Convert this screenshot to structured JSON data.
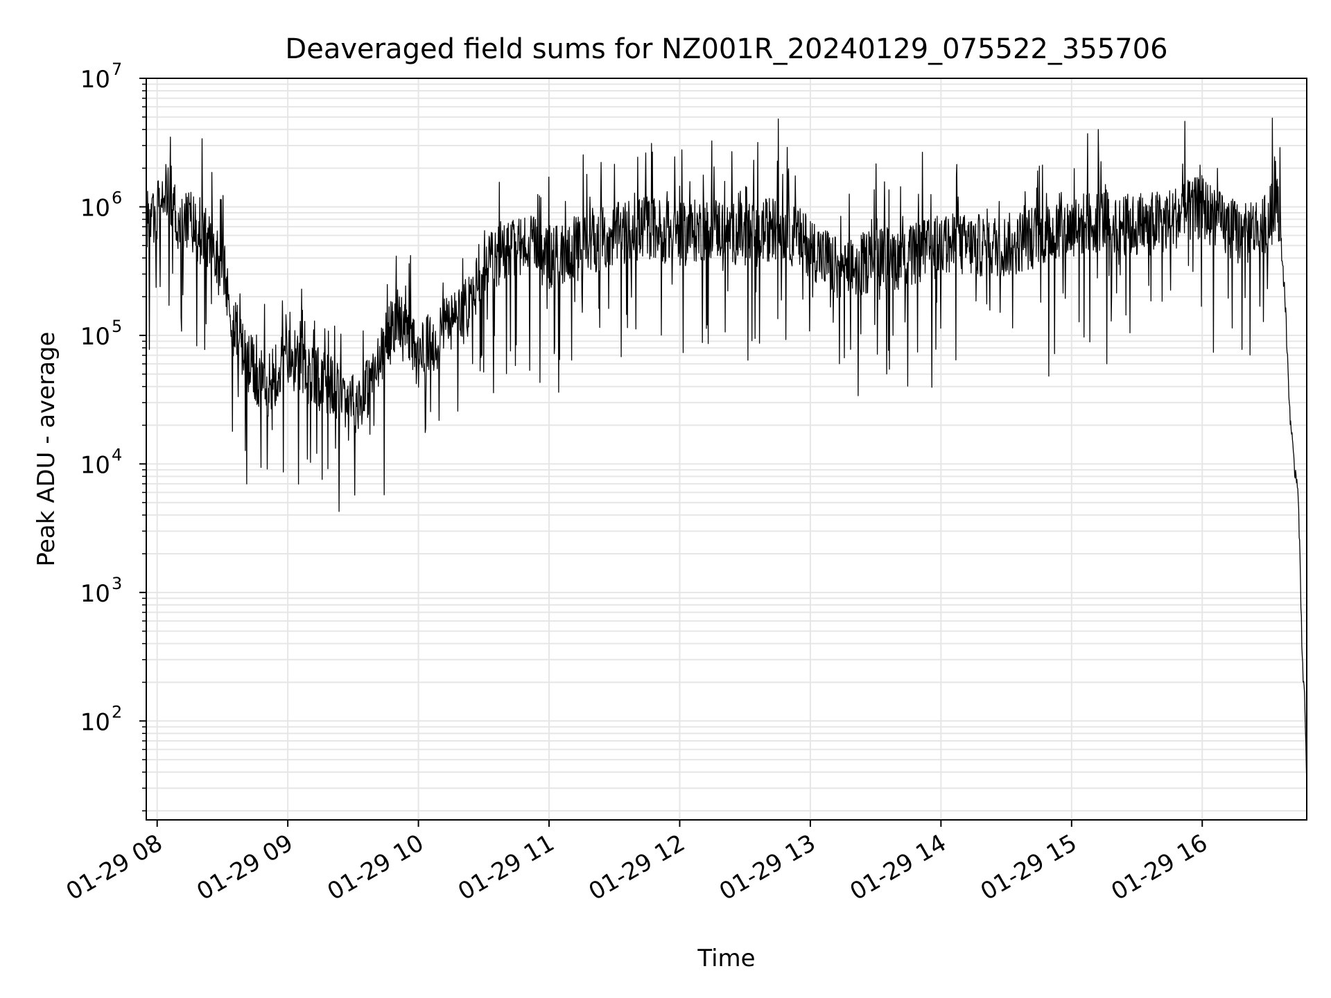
{
  "chart_data": {
    "type": "line",
    "title": "Deaveraged field sums for NZ001R_20240129_075522_355706",
    "xlabel": "Time",
    "ylabel": "Peak ADU - average",
    "xscale": "time",
    "yscale": "log",
    "xlim": [
      "2024-01-29 07:55",
      "2024-01-29 16:48"
    ],
    "ylim": [
      17,
      10000000
    ],
    "grid": true,
    "legend": "none",
    "line_color": "#000000",
    "grid_color": "#e6e6e6",
    "x_ticks": [
      {
        "value": "2024-01-29 08:00",
        "label": "01-29 08"
      },
      {
        "value": "2024-01-29 09:00",
        "label": "01-29 09"
      },
      {
        "value": "2024-01-29 10:00",
        "label": "01-29 10"
      },
      {
        "value": "2024-01-29 11:00",
        "label": "01-29 11"
      },
      {
        "value": "2024-01-29 12:00",
        "label": "01-29 12"
      },
      {
        "value": "2024-01-29 13:00",
        "label": "01-29 13"
      },
      {
        "value": "2024-01-29 14:00",
        "label": "01-29 14"
      },
      {
        "value": "2024-01-29 15:00",
        "label": "01-29 15"
      },
      {
        "value": "2024-01-29 16:00",
        "label": "01-29 16"
      }
    ],
    "y_ticks": [
      {
        "value": 100,
        "base": "10",
        "exp": "2"
      },
      {
        "value": 1000,
        "base": "10",
        "exp": "3"
      },
      {
        "value": 10000,
        "base": "10",
        "exp": "4"
      },
      {
        "value": 100000,
        "base": "10",
        "exp": "5"
      },
      {
        "value": 1000000,
        "base": "10",
        "exp": "6"
      },
      {
        "value": 10000000,
        "base": "10",
        "exp": "7"
      }
    ],
    "series": [
      {
        "x": [
          "2024-01-29 07:55",
          "2024-01-29 08:00",
          "2024-01-29 08:05",
          "2024-01-29 08:10",
          "2024-01-29 08:15",
          "2024-01-29 08:20",
          "2024-01-29 08:25",
          "2024-01-29 08:30",
          "2024-01-29 08:35",
          "2024-01-29 08:40",
          "2024-01-29 08:45",
          "2024-01-29 08:50",
          "2024-01-29 08:55",
          "2024-01-29 09:00",
          "2024-01-29 09:05",
          "2024-01-29 09:10",
          "2024-01-29 09:15",
          "2024-01-29 09:20",
          "2024-01-29 09:25",
          "2024-01-29 09:30",
          "2024-01-29 09:35",
          "2024-01-29 09:40",
          "2024-01-29 09:45",
          "2024-01-29 09:50",
          "2024-01-29 09:55",
          "2024-01-29 10:00",
          "2024-01-29 10:10",
          "2024-01-29 10:20",
          "2024-01-29 10:30",
          "2024-01-29 10:40",
          "2024-01-29 10:50",
          "2024-01-29 11:00",
          "2024-01-29 11:15",
          "2024-01-29 11:30",
          "2024-01-29 11:45",
          "2024-01-29 12:00",
          "2024-01-29 12:15",
          "2024-01-29 12:30",
          "2024-01-29 12:45",
          "2024-01-29 13:00",
          "2024-01-29 13:15",
          "2024-01-29 13:30",
          "2024-01-29 13:45",
          "2024-01-29 14:00",
          "2024-01-29 14:15",
          "2024-01-29 14:30",
          "2024-01-29 14:45",
          "2024-01-29 15:00",
          "2024-01-29 15:15",
          "2024-01-29 15:30",
          "2024-01-29 15:45",
          "2024-01-29 16:00",
          "2024-01-29 16:10",
          "2024-01-29 16:20",
          "2024-01-29 16:30",
          "2024-01-29 16:35",
          "2024-01-29 16:38",
          "2024-01-29 16:40",
          "2024-01-29 16:42",
          "2024-01-29 16:44",
          "2024-01-29 16:46",
          "2024-01-29 16:47",
          "2024-01-29 16:48"
        ],
        "y": [
          800000,
          900000,
          1500000,
          700000,
          800000,
          600000,
          500000,
          300000,
          120000,
          70000,
          50000,
          40000,
          50000,
          70000,
          60000,
          50000,
          45000,
          40000,
          35000,
          30000,
          35000,
          50000,
          80000,
          150000,
          90000,
          70000,
          100000,
          150000,
          300000,
          500000,
          500000,
          400000,
          500000,
          600000,
          700000,
          600000,
          700000,
          600000,
          700000,
          500000,
          300000,
          400000,
          400000,
          500000,
          500000,
          500000,
          600000,
          700000,
          800000,
          700000,
          800000,
          1000000,
          700000,
          600000,
          800000,
          1000000,
          200000,
          30000,
          10000,
          7000,
          300,
          150,
          30
        ]
      }
    ]
  }
}
